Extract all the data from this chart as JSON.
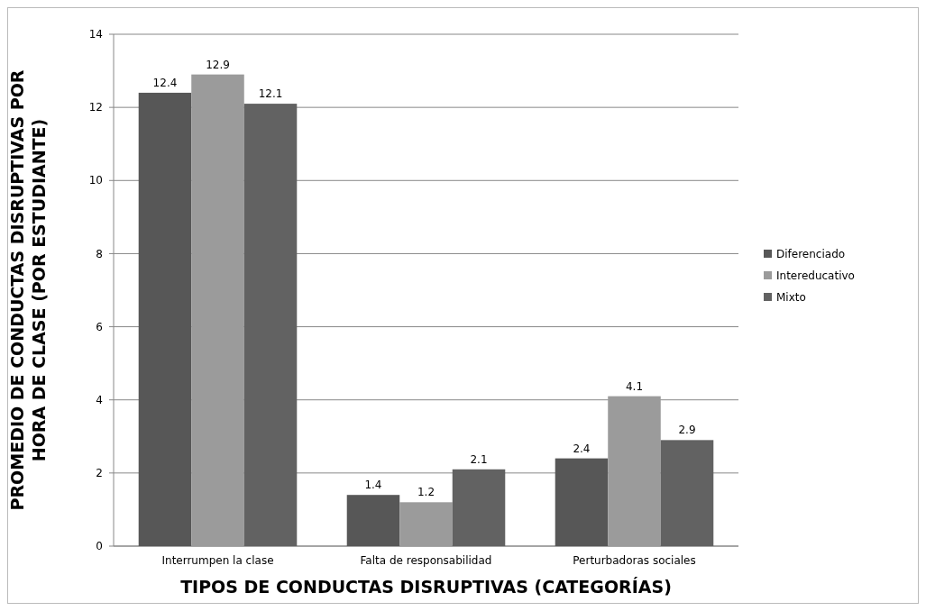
{
  "chart_data": {
    "type": "bar",
    "xlabel": "TIPOS DE CONDUCTAS DISRUPTIVAS (CATEGORÍAS)",
    "ylabel": "PROMEDIO DE CONDUCTAS DISRUPTIVAS POR HORA DE CLASE (POR ESTUDIANTE)",
    "categories": [
      "Interrumpen la clase",
      "Falta de responsabilidad",
      "Perturbadoras sociales"
    ],
    "series": [
      {
        "name": "Diferenciado",
        "color": "#575757",
        "values": [
          12.4,
          1.4,
          2.4
        ]
      },
      {
        "name": "Intereducativo",
        "color": "#9b9b9b",
        "values": [
          12.9,
          1.2,
          4.1
        ]
      },
      {
        "name": "Mixto",
        "color": "#626262",
        "values": [
          12.1,
          2.1,
          2.9
        ]
      }
    ],
    "ylim": [
      0,
      14
    ],
    "yticks": [
      0,
      2,
      4,
      6,
      8,
      10,
      12,
      14
    ],
    "grid": "y",
    "legend": "right",
    "data_labels": true
  }
}
